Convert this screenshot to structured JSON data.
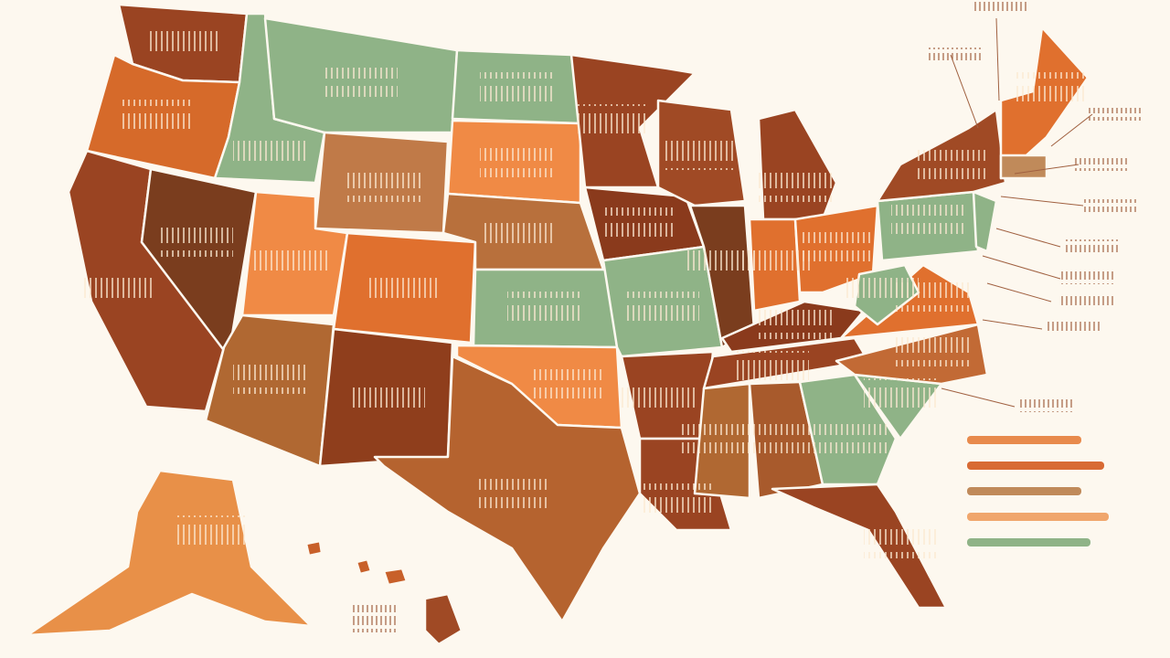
{
  "legend": {
    "colors": [
      "#e88a4c",
      "#d86a34",
      "#c08a5a",
      "#f0a66c",
      "#8fb387"
    ]
  }
}
